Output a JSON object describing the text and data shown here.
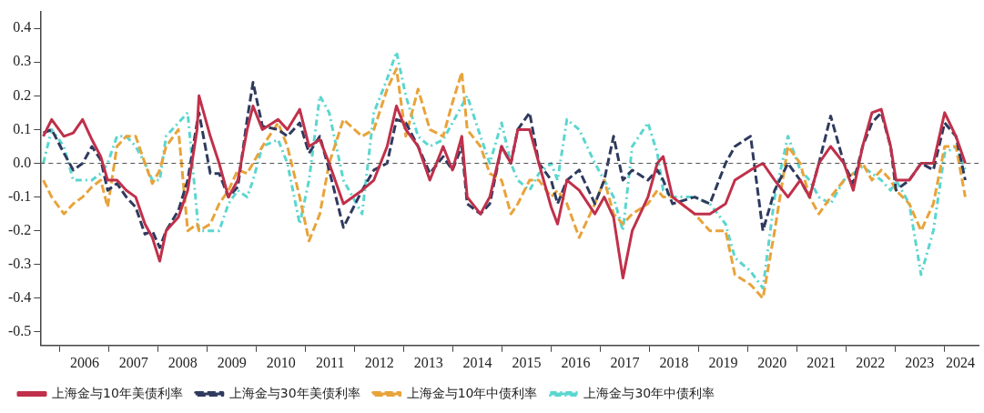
{
  "chart_data": {
    "type": "line",
    "legend": "bottom",
    "x": [
      2005.66,
      2005.83,
      2006.08,
      2006.27,
      2006.46,
      2006.65,
      2006.83,
      2006.97,
      2007.16,
      2007.35,
      2007.54,
      2007.73,
      2007.88,
      2008.03,
      2008.16,
      2008.41,
      2008.6,
      2008.79,
      2008.83,
      2009.06,
      2009.24,
      2009.43,
      2009.62,
      2009.81,
      2009.93,
      2010.12,
      2010.44,
      2010.63,
      2010.88,
      2011.07,
      2011.29,
      2011.48,
      2011.77,
      2012.15,
      2012.39,
      2012.66,
      2012.85,
      2013.04,
      2013.29,
      2013.53,
      2013.8,
      2013.99,
      2014.18,
      2014.29,
      2014.56,
      2014.75,
      2014.99,
      2015.18,
      2015.32,
      2015.56,
      2015.75,
      2016.0,
      2016.13,
      2016.32,
      2016.57,
      2016.89,
      2017.08,
      2017.27,
      2017.46,
      2017.65,
      2017.97,
      2018.16,
      2018.28,
      2018.47,
      2018.92,
      2019.23,
      2019.55,
      2019.74,
      2020.06,
      2020.31,
      2020.55,
      2020.82,
      2021.07,
      2021.26,
      2021.45,
      2021.69,
      2021.96,
      2022.15,
      2022.34,
      2022.53,
      2022.72,
      2022.91,
      2023.02,
      2023.29,
      2023.53,
      2023.78,
      2024.01,
      2024.24,
      2024.43
    ],
    "xlim": [
      2005.6,
      2024.7
    ],
    "xticks": [
      {
        "value": 2006,
        "label": null
      },
      {
        "value": 2006.5,
        "label": "2006"
      },
      {
        "value": 2007,
        "label": null
      },
      {
        "value": 2007.5,
        "label": "2007"
      },
      {
        "value": 2008,
        "label": null
      },
      {
        "value": 2008.5,
        "label": "2008"
      },
      {
        "value": 2009,
        "label": null
      },
      {
        "value": 2009.5,
        "label": "2009"
      },
      {
        "value": 2010,
        "label": null
      },
      {
        "value": 2010.5,
        "label": "2010"
      },
      {
        "value": 2011,
        "label": null
      },
      {
        "value": 2011.5,
        "label": "2011"
      },
      {
        "value": 2012,
        "label": null
      },
      {
        "value": 2012.5,
        "label": "2012"
      },
      {
        "value": 2013,
        "label": null
      },
      {
        "value": 2013.5,
        "label": "2013"
      },
      {
        "value": 2014,
        "label": null
      },
      {
        "value": 2014.5,
        "label": "2014"
      },
      {
        "value": 2015,
        "label": null
      },
      {
        "value": 2015.5,
        "label": "2015"
      },
      {
        "value": 2016,
        "label": null
      },
      {
        "value": 2016.5,
        "label": "2016"
      },
      {
        "value": 2017,
        "label": null
      },
      {
        "value": 2017.5,
        "label": "2017"
      },
      {
        "value": 2018,
        "label": null
      },
      {
        "value": 2018.5,
        "label": "2018"
      },
      {
        "value": 2019,
        "label": null
      },
      {
        "value": 2019.5,
        "label": "2019"
      },
      {
        "value": 2020,
        "label": null
      },
      {
        "value": 2020.5,
        "label": "2020"
      },
      {
        "value": 2021,
        "label": null
      },
      {
        "value": 2021.5,
        "label": "2021"
      },
      {
        "value": 2022,
        "label": null
      },
      {
        "value": 2022.5,
        "label": "2022"
      },
      {
        "value": 2023,
        "label": null
      },
      {
        "value": 2023.5,
        "label": "2023"
      },
      {
        "value": 2024,
        "label": null
      },
      {
        "value": 2024.33,
        "label": "2024"
      }
    ],
    "ylim": [
      -0.54,
      0.45
    ],
    "yticks": [
      -0.5,
      -0.4,
      -0.3,
      -0.2,
      -0.1,
      {
        "value": 0,
        "label": "0.0"
      },
      0.1,
      0.2,
      0.3,
      0.4
    ],
    "ref_lines": [
      {
        "axis": "y",
        "value": 0,
        "color": "#555555",
        "line_style": "dashed"
      }
    ],
    "series": [
      {
        "name": "上海金与10年美债利率",
        "color": "#c0304a",
        "line_style": "solid",
        "values": [
          0.08,
          0.13,
          0.08,
          0.09,
          0.13,
          0.07,
          0.02,
          -0.05,
          -0.05,
          -0.08,
          -0.1,
          -0.18,
          -0.22,
          -0.29,
          -0.2,
          -0.16,
          -0.08,
          0.1,
          0.2,
          0.08,
          0.0,
          -0.1,
          -0.05,
          0.1,
          0.17,
          0.1,
          0.13,
          0.1,
          0.16,
          0.05,
          0.07,
          0.0,
          -0.12,
          -0.08,
          -0.05,
          0.05,
          0.17,
          0.1,
          0.05,
          -0.05,
          0.05,
          -0.02,
          0.08,
          -0.1,
          -0.15,
          -0.1,
          0.05,
          0.0,
          0.1,
          0.1,
          0.0,
          -0.13,
          -0.18,
          -0.05,
          -0.08,
          -0.15,
          -0.1,
          -0.16,
          -0.34,
          -0.2,
          -0.1,
          0.0,
          0.02,
          -0.1,
          -0.15,
          -0.15,
          -0.12,
          -0.05,
          -0.02,
          0.0,
          -0.05,
          -0.1,
          -0.05,
          -0.1,
          0.0,
          0.05,
          0.0,
          -0.08,
          0.05,
          0.15,
          0.16,
          0.05,
          -0.05,
          -0.05,
          0.0,
          0.0,
          0.15,
          0.08,
          0.0
        ]
      },
      {
        "name": "上海金与30年美债利率",
        "color": "#2f3a5e",
        "line_style": "dashed",
        "values": [
          0.09,
          0.1,
          0.03,
          -0.02,
          0.0,
          0.05,
          0.01,
          -0.08,
          -0.06,
          -0.1,
          -0.13,
          -0.21,
          -0.2,
          -0.25,
          -0.2,
          -0.14,
          -0.05,
          0.12,
          0.15,
          -0.03,
          -0.03,
          -0.1,
          -0.07,
          0.13,
          0.24,
          0.11,
          0.1,
          0.08,
          0.12,
          0.03,
          0.08,
          -0.02,
          -0.19,
          -0.08,
          -0.02,
          0.0,
          0.13,
          0.12,
          0.05,
          -0.03,
          0.02,
          -0.02,
          0.05,
          -0.12,
          -0.15,
          -0.12,
          0.05,
          0.0,
          0.1,
          0.15,
          0.0,
          -0.05,
          -0.12,
          -0.05,
          -0.02,
          -0.12,
          -0.05,
          0.08,
          -0.05,
          -0.02,
          -0.05,
          -0.02,
          -0.05,
          -0.12,
          -0.1,
          -0.12,
          0.0,
          0.05,
          0.08,
          -0.2,
          -0.08,
          0.0,
          -0.05,
          -0.1,
          0.0,
          0.14,
          0.0,
          -0.06,
          0.05,
          0.12,
          0.15,
          0.05,
          -0.08,
          -0.05,
          0.0,
          -0.02,
          0.12,
          0.08,
          -0.05
        ]
      },
      {
        "name": "上海金与10年中债利率",
        "color": "#e8a33a",
        "line_style": "dashed",
        "values": [
          -0.05,
          -0.1,
          -0.15,
          -0.12,
          -0.1,
          -0.07,
          -0.05,
          -0.13,
          0.05,
          0.08,
          0.08,
          0.0,
          -0.06,
          -0.02,
          0.05,
          0.1,
          -0.2,
          -0.18,
          -0.2,
          -0.18,
          -0.12,
          -0.08,
          -0.02,
          -0.03,
          0.0,
          0.05,
          0.12,
          0.05,
          -0.1,
          -0.23,
          -0.15,
          0.0,
          0.13,
          0.08,
          0.1,
          0.22,
          0.28,
          0.08,
          0.22,
          0.1,
          0.08,
          0.18,
          0.27,
          0.1,
          0.05,
          -0.03,
          -0.05,
          -0.15,
          -0.12,
          -0.05,
          -0.05,
          -0.1,
          -0.08,
          -0.12,
          -0.22,
          -0.12,
          -0.05,
          -0.15,
          -0.18,
          -0.15,
          -0.12,
          -0.08,
          -0.1,
          -0.1,
          -0.15,
          -0.2,
          -0.2,
          -0.33,
          -0.36,
          -0.4,
          -0.2,
          0.05,
          0.0,
          -0.1,
          -0.15,
          -0.1,
          -0.05,
          -0.03,
          0.0,
          -0.05,
          -0.02,
          -0.05,
          -0.08,
          -0.12,
          -0.2,
          -0.12,
          0.05,
          0.05,
          -0.1
        ]
      },
      {
        "name": "上海金与30年中债利率",
        "color": "#5ad6cf",
        "line_style": "dotted",
        "values": [
          0.0,
          0.1,
          0.05,
          -0.05,
          -0.05,
          -0.05,
          -0.03,
          0.0,
          0.08,
          0.08,
          0.05,
          0.0,
          -0.05,
          -0.05,
          0.08,
          0.12,
          0.15,
          -0.15,
          -0.2,
          -0.2,
          -0.2,
          -0.12,
          -0.08,
          -0.1,
          -0.05,
          0.05,
          0.07,
          0.0,
          -0.18,
          -0.05,
          0.2,
          0.15,
          -0.05,
          -0.15,
          0.15,
          0.25,
          0.33,
          0.2,
          0.08,
          0.05,
          0.07,
          0.12,
          0.17,
          0.2,
          0.08,
          0.0,
          0.12,
          0.0,
          -0.05,
          -0.08,
          -0.03,
          0.0,
          -0.05,
          0.13,
          0.1,
          0.0,
          -0.05,
          -0.1,
          -0.2,
          0.05,
          0.12,
          0.03,
          -0.08,
          -0.1,
          -0.1,
          -0.12,
          -0.18,
          -0.28,
          -0.32,
          -0.37,
          -0.1,
          0.08,
          -0.02,
          -0.05,
          -0.1,
          -0.12,
          -0.05,
          -0.03,
          -0.01,
          -0.03,
          -0.05,
          -0.08,
          -0.05,
          -0.12,
          -0.33,
          -0.2,
          0.03,
          0.05,
          -0.02
        ]
      }
    ]
  }
}
